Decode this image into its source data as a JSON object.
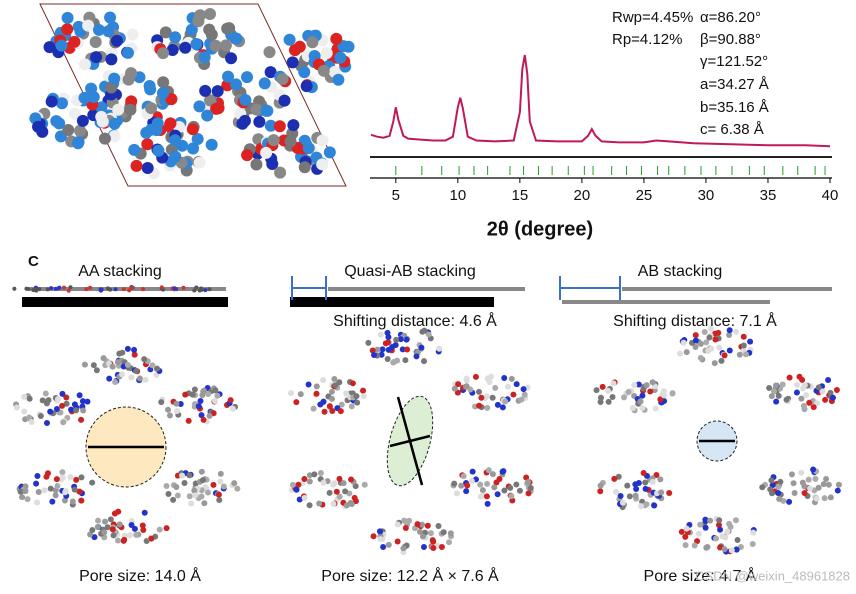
{
  "chart_data": {
    "type": "line",
    "x": [
      3,
      3.5,
      4,
      4.5,
      4.8,
      5,
      5.2,
      5.6,
      6,
      7,
      8,
      9,
      9.6,
      10,
      10.2,
      10.4,
      10.8,
      11.5,
      13,
      14.5,
      15,
      15.2,
      15.4,
      15.6,
      15.8,
      16.3,
      18,
      20,
      20.5,
      20.8,
      21.1,
      21.6,
      23,
      25,
      26,
      27,
      29,
      32,
      35,
      38,
      40
    ],
    "values": [
      16,
      14,
      13,
      15,
      30,
      45,
      32,
      15,
      12,
      11,
      10,
      10,
      14,
      45,
      55,
      44,
      14,
      10,
      9,
      10,
      40,
      85,
      100,
      80,
      30,
      10,
      9,
      9,
      15,
      22,
      15,
      9,
      8,
      8,
      10,
      9,
      7,
      6,
      5,
      5,
      4
    ],
    "color": "#c0185a",
    "bragg_positions": [
      5.0,
      7.1,
      8.7,
      10.1,
      11.3,
      12.4,
      14.2,
      15.3,
      16.5,
      17.6,
      18.9,
      20.2,
      20.9,
      22.4,
      23.6,
      24.8,
      26.1,
      27.0,
      28.3,
      29.6,
      30.8,
      32.1,
      33.5,
      34.7,
      36.2,
      37.4,
      38.8,
      39.6
    ],
    "bragg_color": "#2a9d2a",
    "xlim": [
      3,
      40
    ],
    "xticks": [
      5,
      10,
      15,
      20,
      25,
      30,
      35,
      40
    ],
    "ylim": [
      0,
      100
    ],
    "x_label": "2θ (degree)",
    "annotations": [
      "Rwp=4.45%",
      "Rp=4.12%",
      "α=86.20°",
      "β=90.88°",
      "γ=121.52°",
      "a=34.27 Å",
      "b=35.16 Å",
      "c= 6.38 Å"
    ]
  },
  "panel": {
    "label": "C",
    "columns": [
      {
        "title": "AA stacking",
        "pore": "Pore size: 14.0 Å"
      },
      {
        "title": "Quasi-AB stacking",
        "shift": "Shifting distance: 4.6 Å",
        "pore": "Pore size: 12.2 Å × 7.6 Å"
      },
      {
        "title": "AB stacking",
        "shift": "Shifting distance: 7.1 Å",
        "pore": "Pore size: 4.7 Å"
      }
    ]
  },
  "watermark": "CSDN @weixin_48961828"
}
